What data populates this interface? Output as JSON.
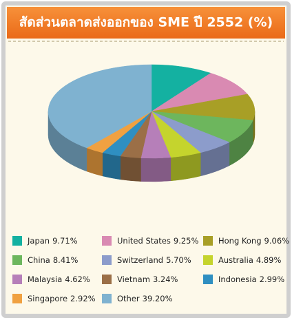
{
  "chart_data": {
    "type": "pie",
    "title": "สัดส่วนตลาดส่งออกของ SME ปี 2552 (%)",
    "categories": [
      "Japan",
      "United States",
      "Hong Kong",
      "China",
      "Switzerland",
      "Australia",
      "Malaysia",
      "Vietnam",
      "Indonesia",
      "Singapore",
      "Other"
    ],
    "values": [
      9.71,
      9.25,
      9.06,
      8.41,
      5.7,
      4.89,
      4.62,
      3.24,
      2.99,
      2.92,
      39.2
    ],
    "value_labels": [
      "9.71%",
      "9.25%",
      "9.06%",
      "8.41%",
      "5.70%",
      "4.89%",
      "4.62%",
      "3.24%",
      "2.99%",
      "2.92%",
      "39.20%"
    ],
    "colors": [
      "#14b1a1",
      "#d98ab2",
      "#a89f26",
      "#6db65d",
      "#8c9ccb",
      "#c5d42d",
      "#b67fb9",
      "#9b6f47",
      "#2f8fc1",
      "#f0a141",
      "#7fb2d0"
    ]
  }
}
